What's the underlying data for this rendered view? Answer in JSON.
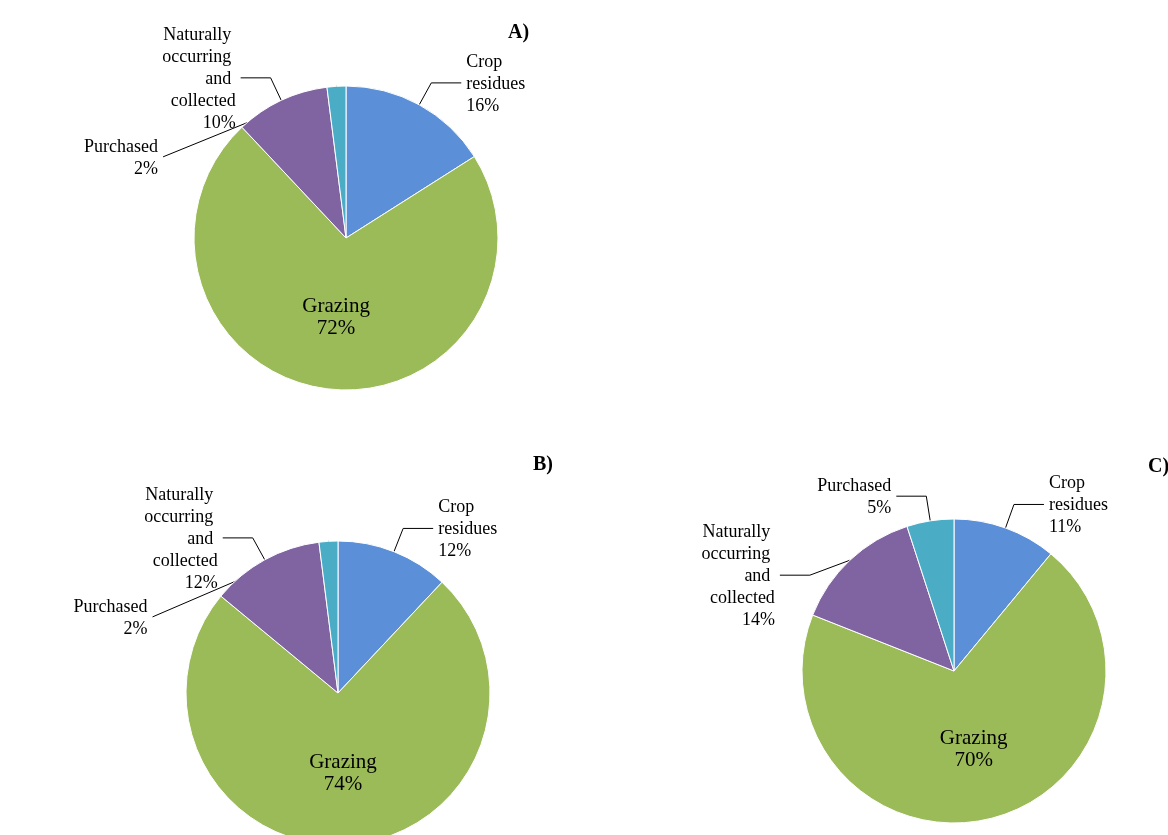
{
  "chart_data": [
    {
      "type": "pie",
      "title": "A)",
      "categories": [
        "Crop residues",
        "Grazing",
        "Naturally occurring and collected",
        "Purchased"
      ],
      "values": [
        16,
        72,
        10,
        2
      ],
      "value_labels": [
        "16%",
        "72%",
        "10%",
        "2%"
      ],
      "colors": [
        "#5b8fd8",
        "#9bbb59",
        "#8064a2",
        "#4bacc6"
      ],
      "legend": false
    },
    {
      "type": "pie",
      "title": "B)",
      "categories": [
        "Crop residues",
        "Grazing",
        "Naturally occurring and collected",
        "Purchased"
      ],
      "values": [
        12,
        74,
        12,
        2
      ],
      "value_labels": [
        "12%",
        "74%",
        "12%",
        "2%"
      ],
      "colors": [
        "#5b8fd8",
        "#9bbb59",
        "#8064a2",
        "#4bacc6"
      ],
      "legend": false
    },
    {
      "type": "pie",
      "title": "C)",
      "categories": [
        "Crop residues",
        "Grazing",
        "Naturally occurring and collected",
        "Purchased"
      ],
      "values": [
        11,
        70,
        14,
        5
      ],
      "value_labels": [
        "11%",
        "70%",
        "14%",
        "5%"
      ],
      "colors": [
        "#5b8fd8",
        "#9bbb59",
        "#8064a2",
        "#4bacc6"
      ],
      "legend": false
    }
  ]
}
